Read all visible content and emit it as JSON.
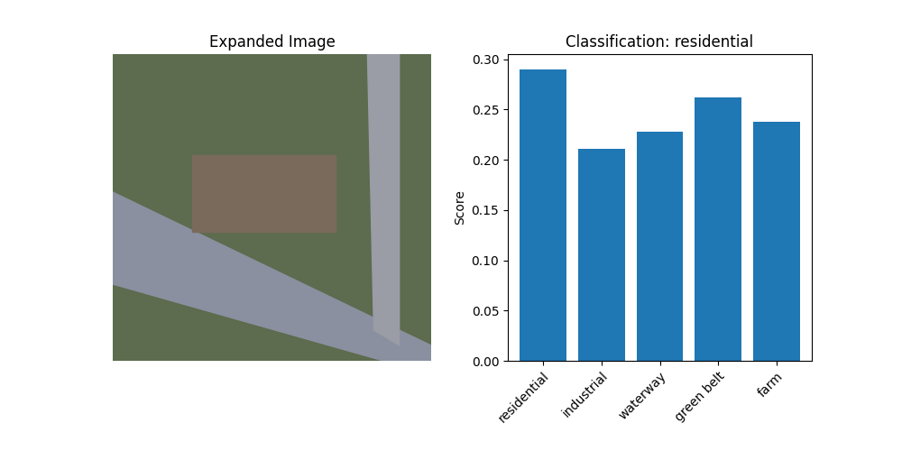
{
  "chart_data": [
    {
      "type": "image",
      "title": "Expanded Image"
    },
    {
      "type": "bar",
      "title": "Classification: residential",
      "categories": [
        "residential",
        "industrial",
        "waterway",
        "green belt",
        "farm"
      ],
      "values": [
        0.29,
        0.211,
        0.228,
        0.262,
        0.238
      ],
      "color": "#1f77b4",
      "y_label": "Score",
      "ylim": [
        0,
        0.305
      ],
      "yticks": [
        {
          "value": 0,
          "label": "0.00"
        },
        {
          "value": 0.05,
          "label": "0.05"
        },
        {
          "value": 0.1,
          "label": "0.10"
        },
        {
          "value": 0.15,
          "label": "0.15"
        },
        {
          "value": 0.2,
          "label": "0.20"
        },
        {
          "value": 0.25,
          "label": "0.25"
        },
        {
          "value": 0.3,
          "label": "0.30"
        }
      ]
    }
  ]
}
